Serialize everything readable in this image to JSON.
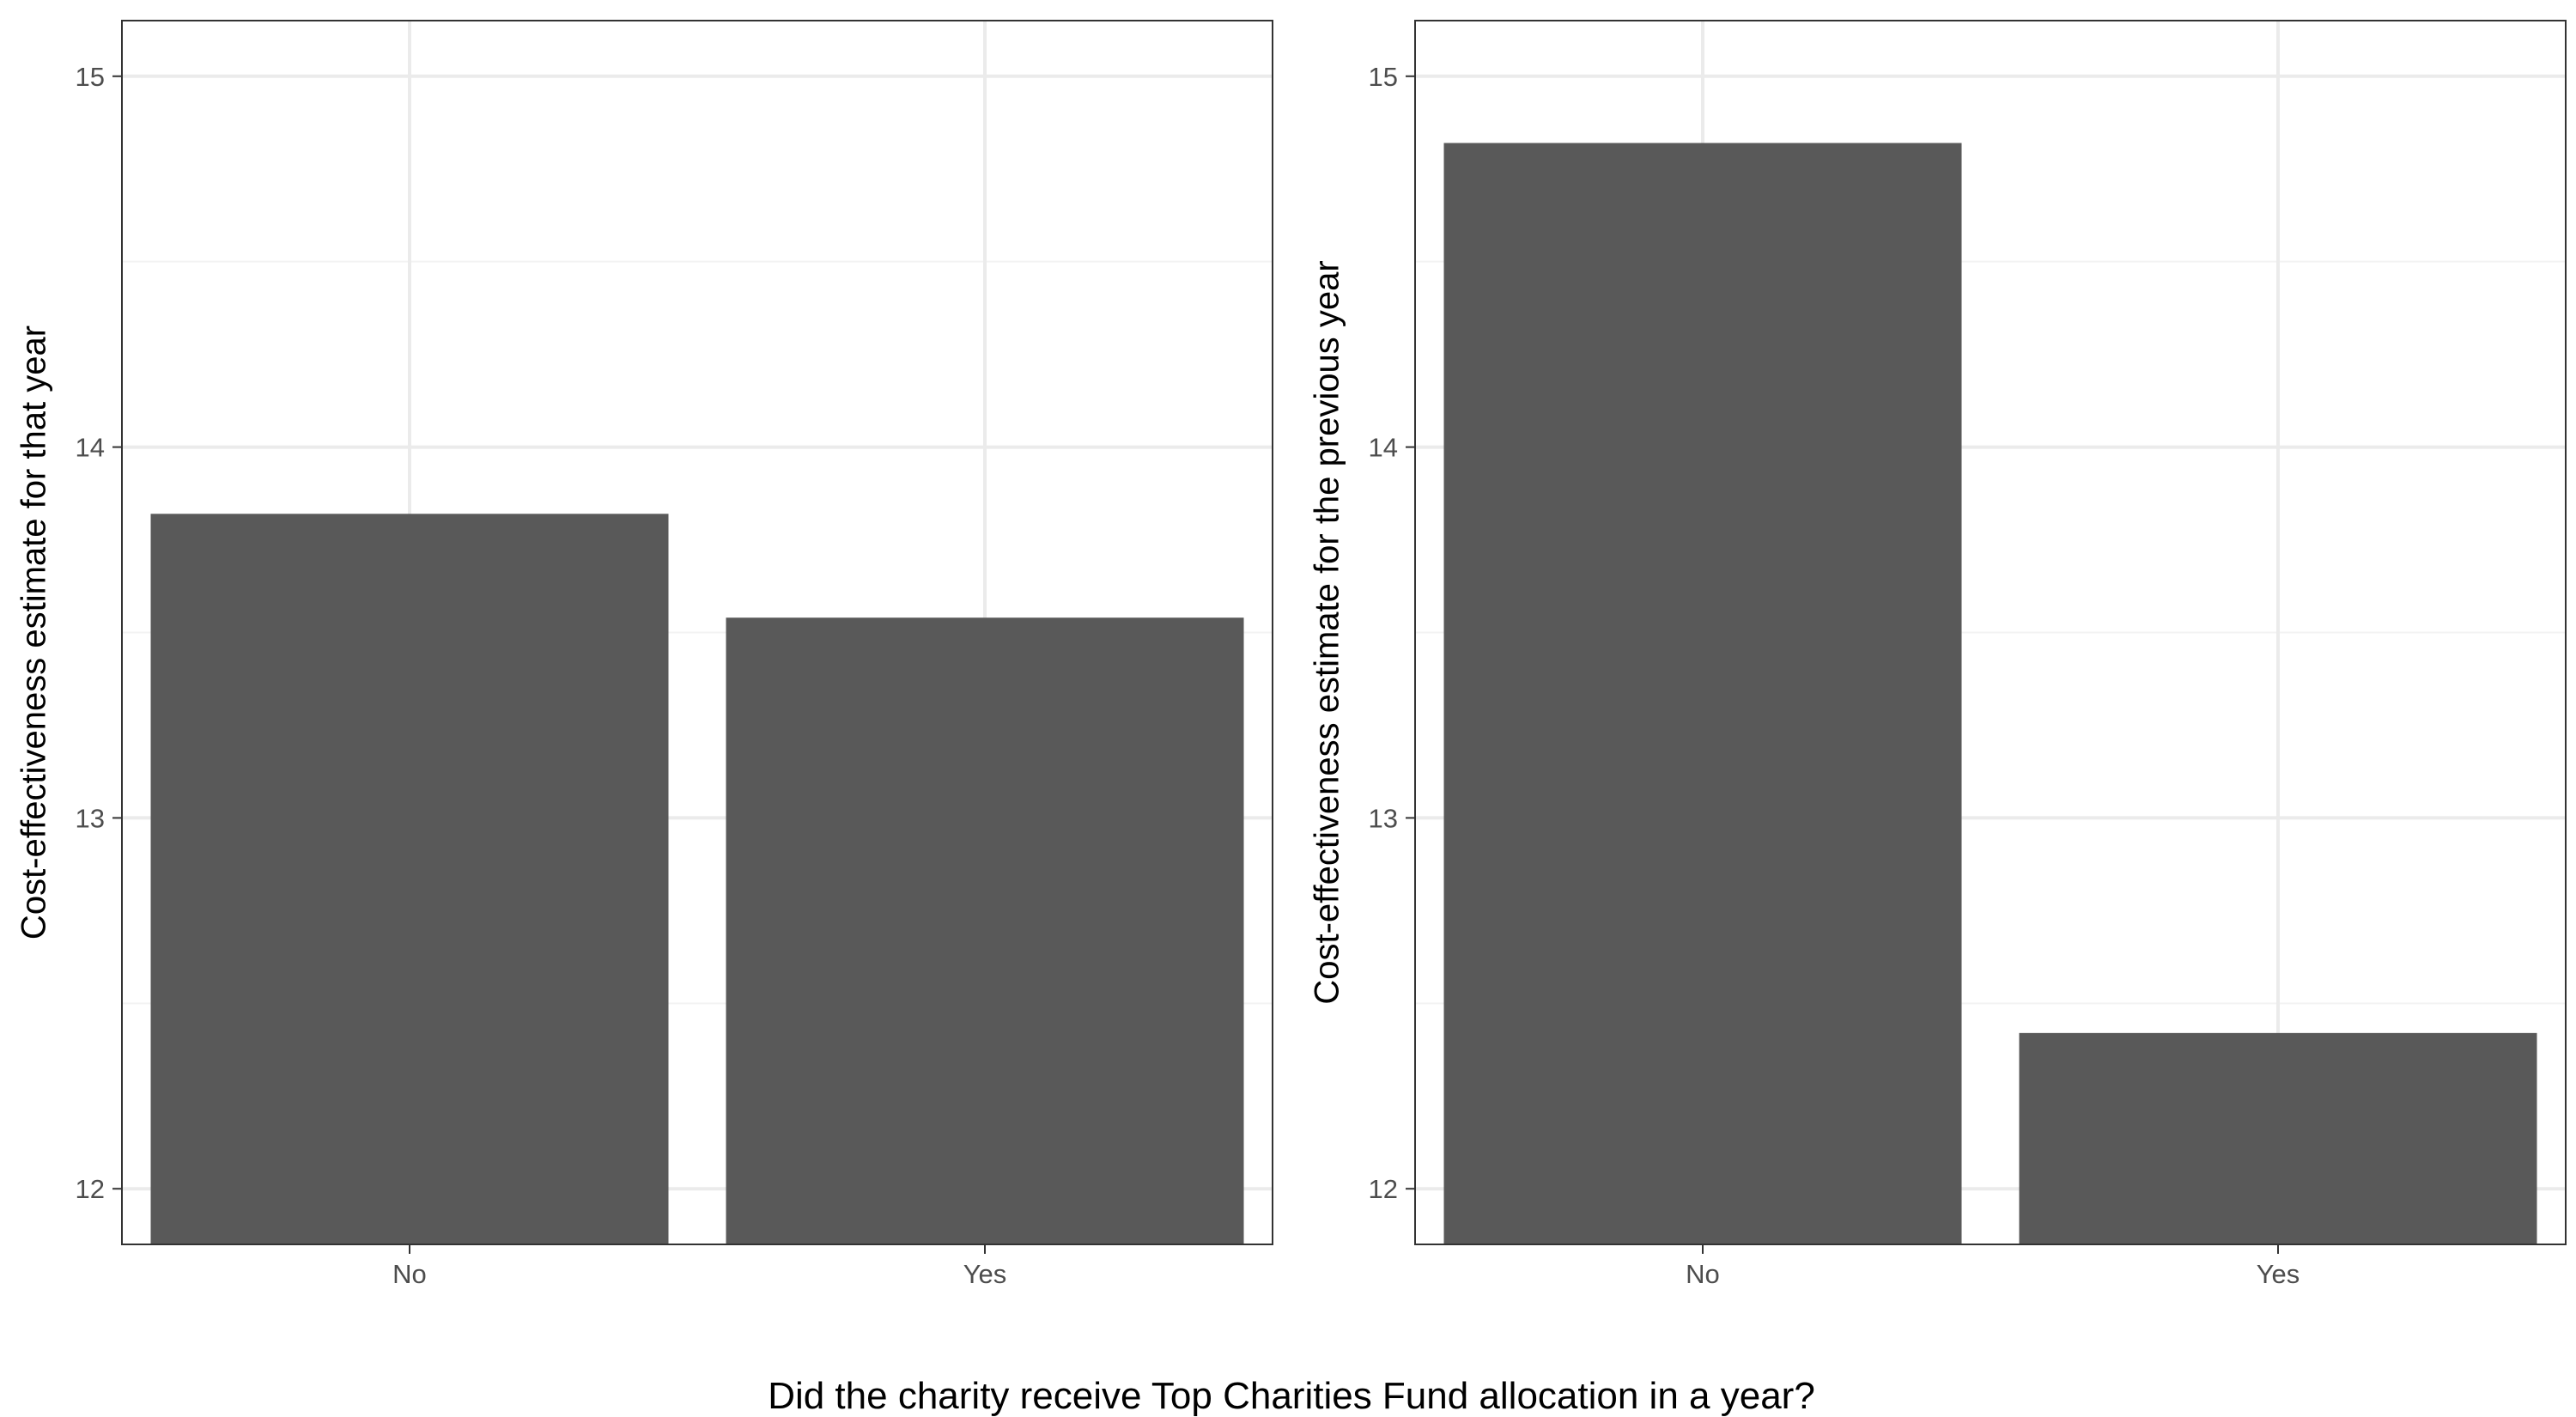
{
  "figure": {
    "caption": "Did the charity receive Top Charities Fund allocation in a year?"
  },
  "colors": {
    "bar": "#595959",
    "grid_major": "#ebebeb",
    "grid_minor": "#f3f3f3",
    "panel_border": "#333333",
    "tick_text": "#4d4d4d",
    "background": "#ffffff"
  },
  "chart_data": [
    {
      "type": "bar",
      "categories": [
        "No",
        "Yes"
      ],
      "values": [
        13.82,
        13.54
      ],
      "xlabel": "",
      "ylabel": "Cost-effectiveness estimate for that year",
      "ylim": [
        11.85,
        15.15
      ],
      "yticks": [
        12,
        13,
        14,
        15
      ],
      "ytick_labels": [
        "12",
        "13",
        "14",
        "15"
      ],
      "grid": true
    },
    {
      "type": "bar",
      "categories": [
        "No",
        "Yes"
      ],
      "values": [
        14.82,
        12.42
      ],
      "xlabel": "",
      "ylabel": "Cost-effectiveness estimate for the previous year",
      "ylim": [
        11.85,
        15.15
      ],
      "yticks": [
        12,
        13,
        14,
        15
      ],
      "ytick_labels": [
        "12",
        "13",
        "14",
        "15"
      ],
      "grid": true
    }
  ]
}
